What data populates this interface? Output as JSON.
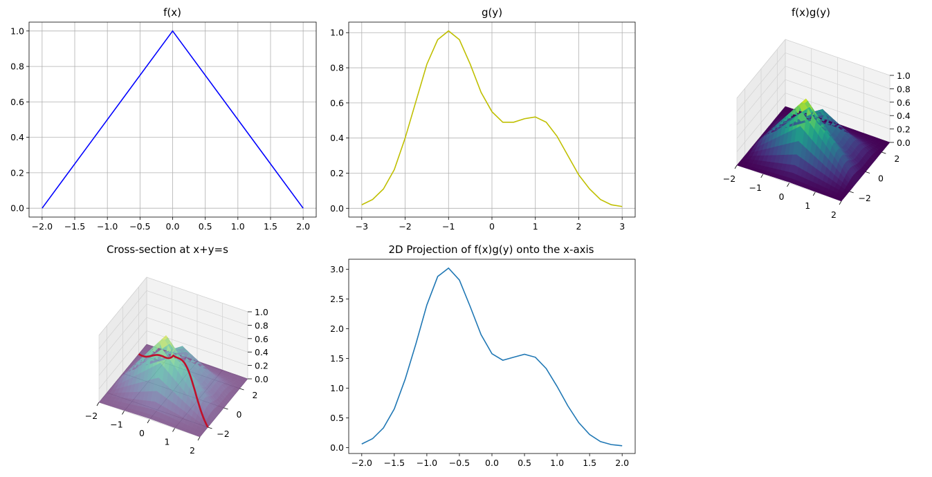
{
  "chart_data": [
    {
      "type": "line",
      "title": "f(x)",
      "xlabel": "",
      "ylabel": "",
      "xlim": [
        -2.2,
        2.2
      ],
      "ylim": [
        -0.05,
        1.05
      ],
      "grid": true,
      "xticks": [
        "−2.0",
        "−1.5",
        "−1.0",
        "−0.5",
        "0.0",
        "0.5",
        "1.0",
        "1.5",
        "2.0"
      ],
      "yticks": [
        "0.0",
        "0.2",
        "0.4",
        "0.6",
        "0.8",
        "1.0"
      ],
      "colors": {
        "line": "#0000ff"
      },
      "series": [
        {
          "x": [
            -2.0,
            0.0,
            2.0
          ],
          "y": [
            0.0,
            1.0,
            0.0
          ]
        }
      ]
    },
    {
      "type": "line",
      "title": "g(y)",
      "xlabel": "",
      "ylabel": "",
      "xlim": [
        -3.3,
        3.3
      ],
      "ylim": [
        -0.05,
        1.06
      ],
      "grid": true,
      "xticks": [
        "−3",
        "−2",
        "−1",
        "0",
        "1",
        "2",
        "3"
      ],
      "yticks": [
        "0.0",
        "0.2",
        "0.4",
        "0.6",
        "0.8",
        "1.0"
      ],
      "colors": {
        "line": "#bfbf00"
      },
      "series": [
        {
          "x": [
            -3.0,
            -2.75,
            -2.5,
            -2.25,
            -2.0,
            -1.75,
            -1.5,
            -1.25,
            -1.0,
            -0.75,
            -0.5,
            -0.25,
            0.0,
            0.25,
            0.5,
            0.75,
            1.0,
            1.25,
            1.5,
            1.75,
            2.0,
            2.25,
            2.5,
            2.75,
            3.0
          ],
          "y": [
            0.02,
            0.05,
            0.11,
            0.22,
            0.4,
            0.61,
            0.82,
            0.96,
            1.01,
            0.96,
            0.82,
            0.66,
            0.55,
            0.49,
            0.49,
            0.51,
            0.52,
            0.49,
            0.41,
            0.3,
            0.19,
            0.11,
            0.05,
            0.02,
            0.01
          ]
        }
      ]
    },
    {
      "type": "surface3d",
      "title": "f(x)g(y)",
      "xlim": [
        -2,
        2
      ],
      "ylim": [
        -3,
        3
      ],
      "zlim": [
        0,
        1
      ],
      "xticks": [
        "−2",
        "−1",
        "0",
        "1",
        "2"
      ],
      "yticks": [
        "−2",
        "0",
        "2"
      ],
      "zticks": [
        "0.0",
        "0.2",
        "0.4",
        "0.6",
        "0.8",
        "1.0"
      ],
      "colormap": "viridis",
      "colors": {
        "low": "#440154",
        "high": "#fde725"
      }
    },
    {
      "type": "surface3d",
      "title": "Cross-section at x+y=s",
      "xlim": [
        -2,
        2
      ],
      "ylim": [
        -3,
        3
      ],
      "zlim": [
        0,
        1
      ],
      "xticks": [
        "−2",
        "−1",
        "0",
        "1",
        "2"
      ],
      "yticks": [
        "−2",
        "0",
        "2"
      ],
      "zticks": [
        "0.0",
        "0.2",
        "0.4",
        "0.6",
        "0.8",
        "1.0"
      ],
      "colormap": "viridis",
      "colors": {
        "low": "#440154",
        "high": "#fde725",
        "section": "#c0102a"
      }
    },
    {
      "type": "line",
      "title": "2D Projection of f(x)g(y) onto the x-axis",
      "xlabel": "",
      "ylabel": "",
      "xlim": [
        -2.2,
        2.2
      ],
      "ylim": [
        -0.1,
        3.17
      ],
      "grid": false,
      "xticks": [
        "−2.0",
        "−1.5",
        "−1.0",
        "−0.5",
        "0.0",
        "0.5",
        "1.0",
        "1.5",
        "2.0"
      ],
      "yticks": [
        "0.0",
        "0.5",
        "1.0",
        "1.5",
        "2.0",
        "2.5",
        "3.0"
      ],
      "colors": {
        "line": "#1f77b4"
      },
      "series": [
        {
          "x": [
            -2.0,
            -1.833,
            -1.667,
            -1.5,
            -1.333,
            -1.167,
            -1.0,
            -0.833,
            -0.667,
            -0.5,
            -0.333,
            -0.167,
            0.0,
            0.167,
            0.333,
            0.5,
            0.667,
            0.833,
            1.0,
            1.167,
            1.333,
            1.5,
            1.667,
            1.833,
            2.0
          ],
          "y": [
            0.06,
            0.15,
            0.33,
            0.65,
            1.15,
            1.75,
            2.4,
            2.88,
            3.02,
            2.82,
            2.37,
            1.9,
            1.58,
            1.47,
            1.52,
            1.57,
            1.52,
            1.33,
            1.03,
            0.7,
            0.42,
            0.22,
            0.1,
            0.05,
            0.03
          ]
        }
      ]
    }
  ]
}
